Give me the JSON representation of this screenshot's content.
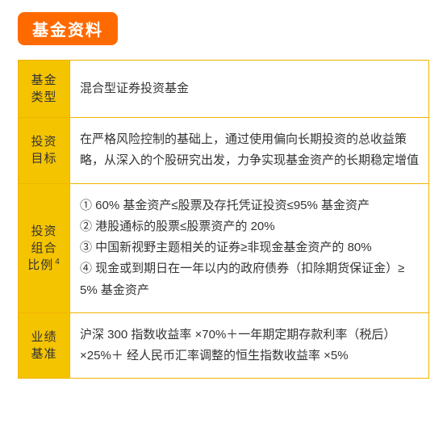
{
  "title": "基金资料",
  "table": {
    "rows": [
      {
        "label_line1": "基金",
        "label_line2": "类型",
        "sup": "",
        "content": "混合型证券投资基金"
      },
      {
        "label_line1": "投资",
        "label_line2": "目标",
        "sup": "",
        "content": "在严格风险控制的基础上，通过使用偏向长期投资的总收益策略，从深入的个股研究出发，力争实现基金资产的长期稳定增值"
      },
      {
        "label_line1": "投资",
        "label_line2": "组合",
        "label_line3": "比例",
        "sup": "4",
        "content_lines": [
          "① 60% 基金资产≤股票及存托凭证投资≤95% 基金资产",
          "② 港股通标的股票≤股票资产的 20%",
          "③ 中国新视野主题相关的证券≥非现金基金资产的 80%",
          "④ 现金或到期日在一年以内的政府债券（扣除期货保证金）≥ 5% 基金资产"
        ]
      },
      {
        "label_line1": "业绩",
        "label_line2": "基准",
        "sup": "",
        "content": "沪深 300 指数收益率 ×70%＋一年期定期存款利率（税后）×25%＋ 经人民币汇率调整的恒生指数收益率 ×5%"
      }
    ]
  },
  "colors": {
    "badge_bg": "#ff6a00",
    "badge_text": "#ffffff",
    "border": "#f0b400",
    "label_bg": "#f5c400",
    "text": "#333333"
  }
}
